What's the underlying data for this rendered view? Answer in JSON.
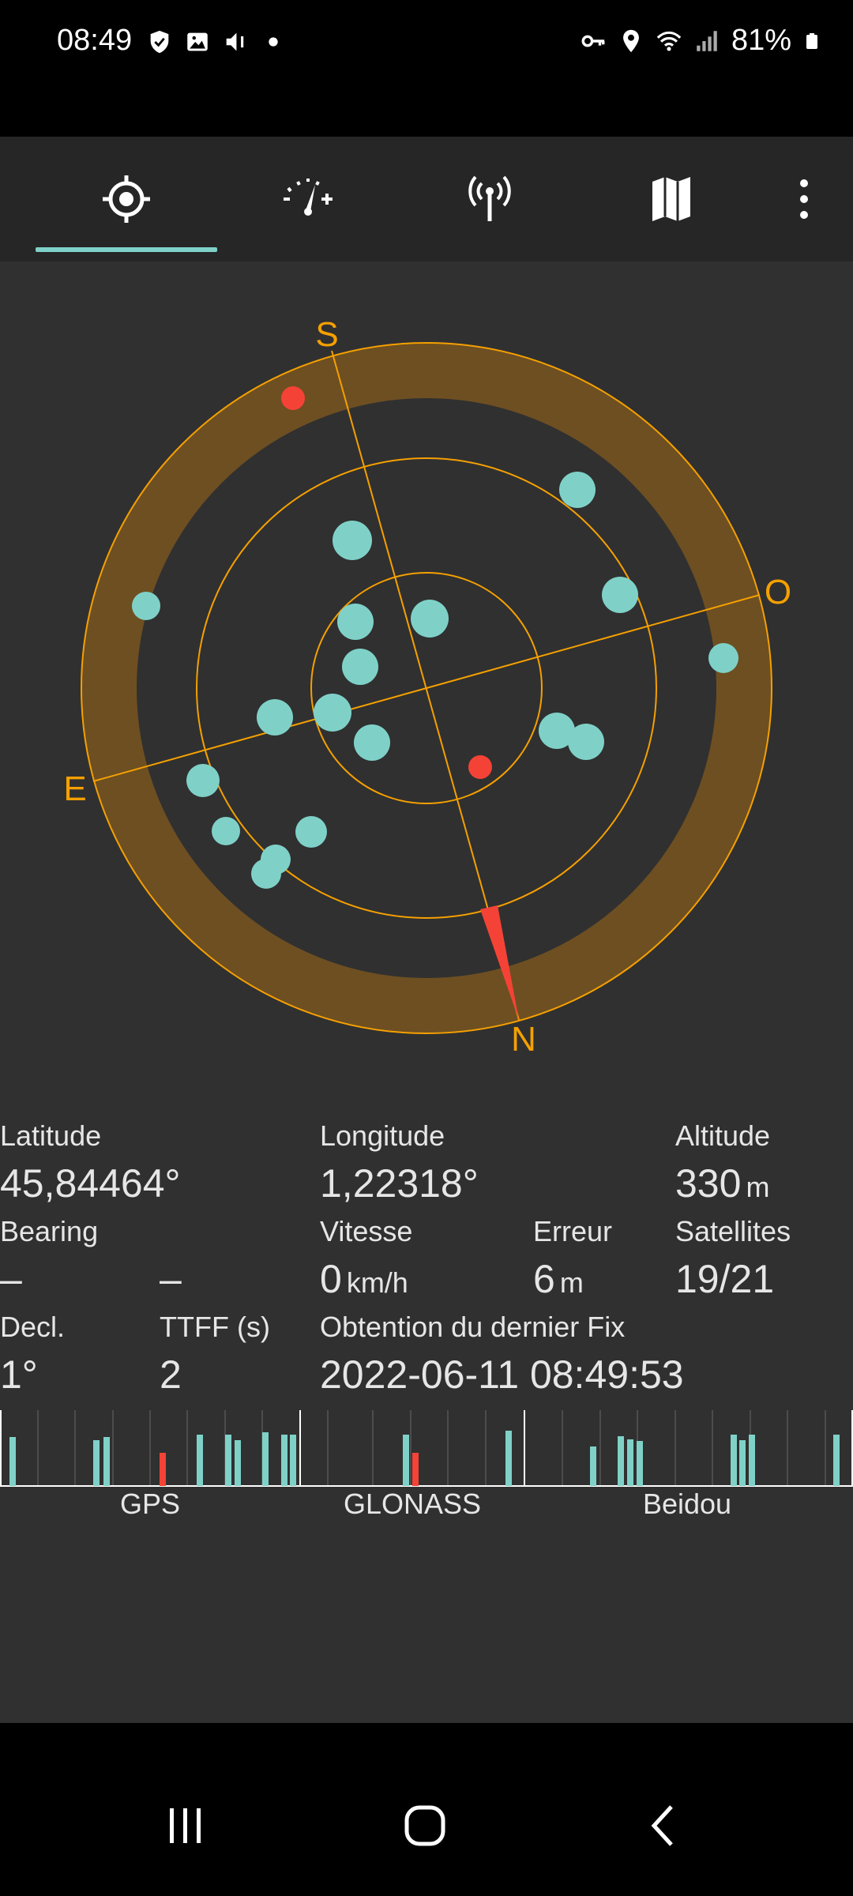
{
  "status_bar": {
    "time": "08:49",
    "battery": "81%",
    "left_icons": [
      "shield-icon",
      "image-icon",
      "volume-icon",
      "dot-icon"
    ],
    "right_icons": [
      "key-icon",
      "location-icon",
      "wifi-icon",
      "signal-icon",
      "battery-icon"
    ]
  },
  "tabs": [
    {
      "name": "position",
      "icon": "crosshair-icon",
      "selected": true
    },
    {
      "name": "speed",
      "icon": "speedometer-icon",
      "selected": false
    },
    {
      "name": "signal",
      "icon": "antenna-icon",
      "selected": false
    },
    {
      "name": "map",
      "icon": "map-icon",
      "selected": false
    }
  ],
  "menu_icon": "more-vert-icon",
  "accent_color": "#7fd1c8",
  "compass": {
    "north": "N",
    "south": "S",
    "east": "E",
    "west": "O",
    "ring_color": "#f5a000",
    "band_color": "#6e4f22",
    "needle_color": "#f44336"
  },
  "info": {
    "latitude_label": "Latitude",
    "latitude_value": "45,84464°",
    "longitude_label": "Longitude",
    "longitude_value": "1,22318°",
    "altitude_label": "Altitude",
    "altitude_value": "330",
    "altitude_unit": "m",
    "bearing_label": "Bearing",
    "bearing_value": "–",
    "bearing_value2": "–",
    "speed_label": "Vitesse",
    "speed_value": "0",
    "speed_unit": "km/h",
    "error_label": "Erreur",
    "error_value": "6",
    "error_unit": "m",
    "satellites_label": "Satellites",
    "satellites_value": "19/21",
    "decl_label": "Decl.",
    "decl_value": "1°",
    "ttff_label": "TTFF (s)",
    "ttff_value": "2",
    "last_fix_label": "Obtention du dernier Fix",
    "last_fix_value": "2022-06-11 08:49:53"
  },
  "constellations": [
    {
      "name": "GPS"
    },
    {
      "name": "GLONASS"
    },
    {
      "name": "Beidou"
    }
  ],
  "nav_bar": [
    "recents-icon",
    "home-icon",
    "back-icon"
  ]
}
